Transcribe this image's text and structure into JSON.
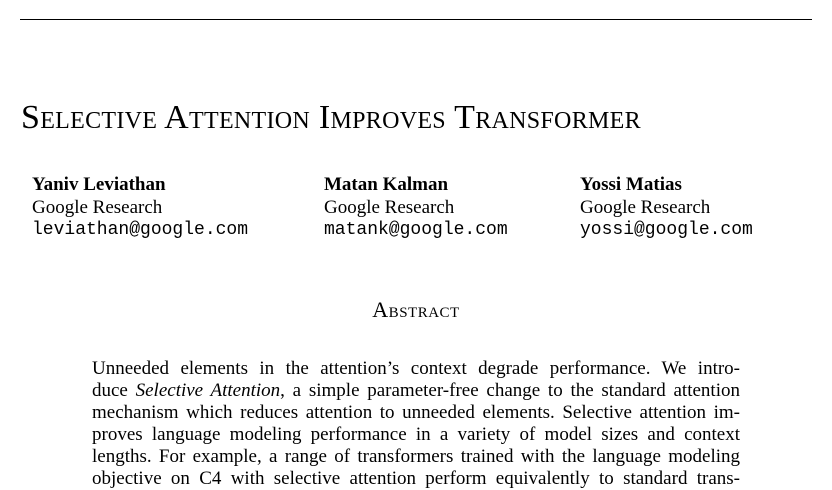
{
  "paper": {
    "title": "Selective Attention Improves Transformer",
    "authors": [
      {
        "name": "Yaniv Leviathan",
        "affiliation": "Google Research",
        "email": "leviathan@google.com"
      },
      {
        "name": "Matan Kalman",
        "affiliation": "Google Research",
        "email": "matank@google.com"
      },
      {
        "name": "Yossi Matias",
        "affiliation": "Google Research",
        "email": "yossi@google.com"
      }
    ],
    "abstract_heading": "Abstract",
    "abstract_lines": [
      "Unneeded elements in the attention’s context degrade performance.  We intro-",
      ", a simple parameter-free change to the standard attention",
      "mechanism which reduces attention to unneeded elements. Selective attention im-",
      "proves language modeling performance in a variety of model sizes and context",
      "lengths. For example, a range of transformers trained with the language modeling",
      "objective on C4 with selective attention perform equivalently to standard trans-"
    ],
    "abstract_line2_prefix": "duce ",
    "abstract_line2_emph": "Selective Attention"
  }
}
